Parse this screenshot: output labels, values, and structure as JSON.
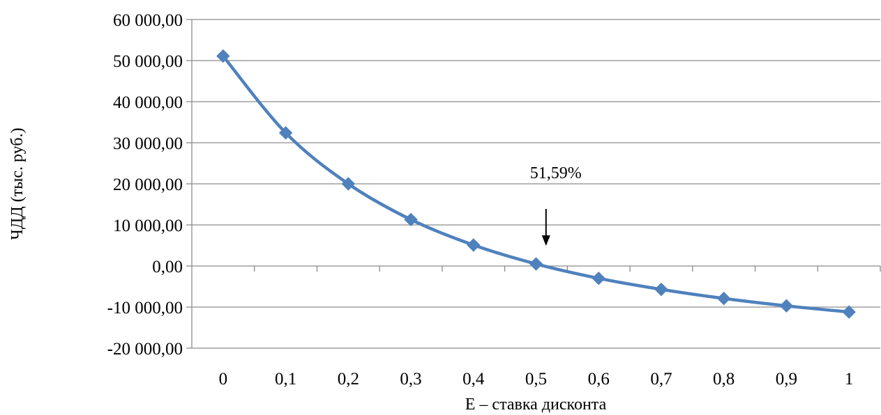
{
  "chart_data": {
    "type": "line",
    "title": "",
    "xlabel": "E – ставка дисконта",
    "ylabel": "ЧДД (тыс. руб.)",
    "categories": [
      "0",
      "0,1",
      "0,2",
      "0,3",
      "0,4",
      "0,5",
      "0,6",
      "0,7",
      "0,8",
      "0,9",
      "1"
    ],
    "x": [
      0,
      0.1,
      0.2,
      0.3,
      0.4,
      0.5,
      0.6,
      0.7,
      0.8,
      0.9,
      1
    ],
    "series": [
      {
        "values": [
          51100,
          32400,
          20000,
          11300,
          5100,
          500,
          -3000,
          -5700,
          -7900,
          -9700,
          -11200
        ],
        "color": "#4F81BD",
        "marker": "diamond"
      }
    ],
    "ylim": [
      -20000,
      60000
    ],
    "yticks": [
      -20000,
      -10000,
      0,
      10000,
      20000,
      30000,
      40000,
      50000,
      60000
    ],
    "ytick_labels": [
      "-20 000,00",
      "-10 000,00",
      "0,00",
      "10 000,00",
      "20 000,00",
      "30 000,00",
      "40 000,00",
      "50 000,00",
      "60 000,00"
    ],
    "grid": true,
    "gridline_color": "#8C8C8C",
    "legend": "none",
    "annotation": {
      "text": "51,59%",
      "x": 0.5159,
      "arrow": "down"
    }
  }
}
